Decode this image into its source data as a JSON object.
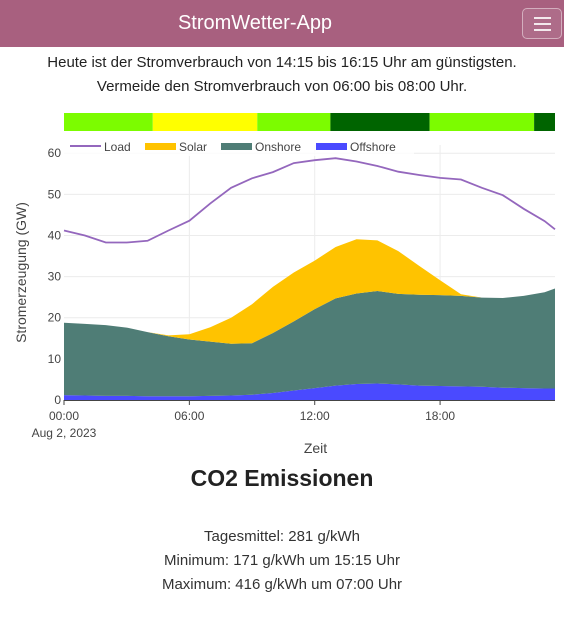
{
  "navbar": {
    "title": "StromWetter-App",
    "menu_icon": "hamburger-menu-icon"
  },
  "advice": {
    "line1": "Heute ist der Stromverbrauch von 14:15 bis 16:15 Uhr am günstigsten.",
    "line2": "Vermeide den Stromverbrauch von 06:00 bis 08:00 Uhr."
  },
  "colors": {
    "navbar": "#a8607f",
    "load": "#9467bd",
    "solar": "#ffc300",
    "onshore": "#4f7d76",
    "offshore": "#4a4aff",
    "bar_lime": "#7cfc00",
    "bar_yellow": "#ffff00",
    "bar_dark": "#006400"
  },
  "price_bar": {
    "hours_start": 0,
    "hours_end": 23.5,
    "segments": [
      {
        "from": 0,
        "to": 4.25,
        "color": "#7cfc00"
      },
      {
        "from": 4.25,
        "to": 9.25,
        "color": "#ffff00"
      },
      {
        "from": 9.25,
        "to": 12.75,
        "color": "#7cfc00"
      },
      {
        "from": 12.75,
        "to": 17.5,
        "color": "#006400"
      },
      {
        "from": 17.5,
        "to": 22.5,
        "color": "#7cfc00"
      },
      {
        "from": 22.5,
        "to": 23.5,
        "color": "#006400"
      }
    ]
  },
  "chart_data": {
    "type": "area",
    "xlabel": "Zeit",
    "ylabel": "Stromerzeugung (GW)",
    "date_label": "Aug 2, 2023",
    "xlim": [
      0,
      23.5
    ],
    "ylim": [
      0,
      62
    ],
    "x_ticks": [
      {
        "value": 0,
        "label": "00:00"
      },
      {
        "value": 6,
        "label": "06:00"
      },
      {
        "value": 12,
        "label": "12:00"
      },
      {
        "value": 18,
        "label": "18:00"
      }
    ],
    "y_ticks": [
      0,
      10,
      20,
      30,
      40,
      50,
      60
    ],
    "grid": true,
    "legend": "top-left, horizontal",
    "x": [
      0,
      1,
      2,
      3,
      4,
      5,
      6,
      7,
      8,
      9,
      10,
      11,
      12,
      13,
      14,
      15,
      16,
      17,
      18,
      19,
      20,
      21,
      22,
      23,
      23.5
    ],
    "series": [
      {
        "name": "Offshore",
        "kind": "stacked-area",
        "values": [
          1.2,
          1.1,
          1.0,
          1.0,
          0.9,
          0.9,
          0.9,
          1.0,
          1.1,
          1.3,
          1.7,
          2.3,
          2.9,
          3.5,
          3.9,
          4.0,
          3.8,
          3.5,
          3.4,
          3.3,
          3.2,
          3.0,
          2.9,
          2.8,
          2.8
        ]
      },
      {
        "name": "Onshore",
        "kind": "stacked-area",
        "values": [
          17.6,
          17.4,
          17.2,
          16.6,
          15.6,
          14.6,
          13.8,
          13.2,
          12.6,
          12.5,
          14.6,
          16.8,
          19.2,
          21.2,
          22.0,
          22.5,
          22.0,
          22.1,
          22.1,
          22.0,
          21.7,
          21.8,
          22.4,
          23.4,
          24.3
        ]
      },
      {
        "name": "Solar",
        "kind": "stacked-area",
        "values": [
          0,
          0,
          0,
          0,
          0,
          0.2,
          1.3,
          3.5,
          6.3,
          9.5,
          11.2,
          11.9,
          11.8,
          12.5,
          13.2,
          12.3,
          10.4,
          7.0,
          3.6,
          0.4,
          0,
          0,
          0,
          0,
          0
        ]
      },
      {
        "name": "Load",
        "kind": "line",
        "values": [
          41.2,
          40.0,
          38.3,
          38.3,
          38.7,
          41.2,
          43.6,
          47.8,
          51.6,
          53.9,
          55.4,
          57.6,
          58.3,
          58.8,
          58.0,
          56.9,
          55.5,
          54.7,
          54.0,
          53.6,
          51.6,
          49.8,
          46.5,
          43.5,
          41.5
        ]
      }
    ]
  },
  "co2": {
    "title": "CO2 Emissionen",
    "mean": "Tagesmittel: 281 g/kWh",
    "min": "Minimum: 171 g/kWh um 15:15 Uhr",
    "max": "Maximum: 416 g/kWh um 07:00 Uhr"
  }
}
